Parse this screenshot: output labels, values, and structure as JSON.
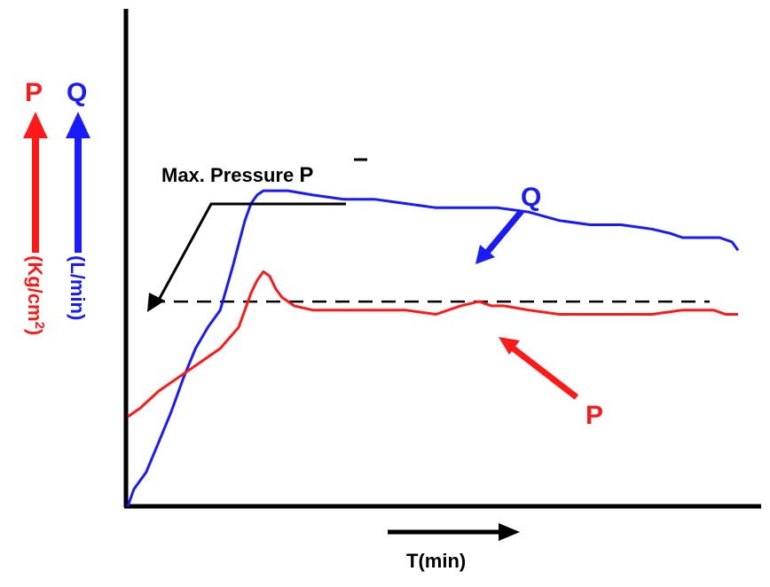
{
  "chart_data": {
    "type": "line",
    "title": "",
    "xlabel": "T(min)",
    "ylabels": {
      "pressure": {
        "symbol": "P",
        "unit_base": "(Kg/cm",
        "unit_exp": "2",
        "unit_close": ")",
        "color": "#ff1a1a"
      },
      "flow": {
        "symbol": "Q",
        "unit": "(L/min)",
        "color": "#1a1aff"
      }
    },
    "x_range": [
      0,
      100
    ],
    "y_range": [
      0,
      100
    ],
    "grid": false,
    "reference_line": {
      "label": "Max. Pressure ",
      "symbol": "P",
      "y": 48,
      "style": "dashed"
    },
    "series": [
      {
        "name": "Q",
        "color": "#1a1aff",
        "x": [
          0,
          1,
          3,
          5,
          7,
          9,
          11,
          13,
          15,
          17,
          19,
          20,
          21,
          22,
          23,
          24,
          26,
          30,
          35,
          40,
          45,
          50,
          55,
          60,
          65,
          70,
          75,
          80,
          85,
          88,
          90,
          93,
          96,
          98,
          99
        ],
        "y": [
          0,
          4,
          8,
          15,
          22,
          30,
          37,
          42,
          46,
          56,
          67,
          71,
          73,
          74,
          74,
          74,
          74,
          73,
          72,
          72,
          71,
          70,
          70,
          70,
          69,
          67,
          66,
          66,
          65,
          64,
          63,
          63,
          63,
          62,
          60
        ]
      },
      {
        "name": "P",
        "color": "#ff1a1a",
        "x": [
          0,
          2,
          5,
          8,
          12,
          15,
          18,
          20,
          21,
          22,
          23,
          24,
          25,
          27,
          30,
          35,
          40,
          45,
          50,
          54,
          57,
          59,
          61,
          65,
          70,
          75,
          80,
          85,
          90,
          93,
          95,
          97,
          99
        ],
        "y": [
          21,
          23,
          27,
          30,
          34,
          37,
          42,
          50,
          53,
          55,
          54,
          51,
          49,
          47,
          46,
          46,
          46,
          46,
          45,
          47,
          48,
          47,
          47,
          46,
          45,
          45,
          45,
          45,
          46,
          46,
          46,
          45,
          45
        ]
      }
    ],
    "annotations": [
      {
        "text": "Q",
        "points_to": "Q",
        "color": "#1a1aff"
      },
      {
        "text": "P",
        "points_to": "P",
        "color": "#ff1a1a"
      }
    ]
  }
}
